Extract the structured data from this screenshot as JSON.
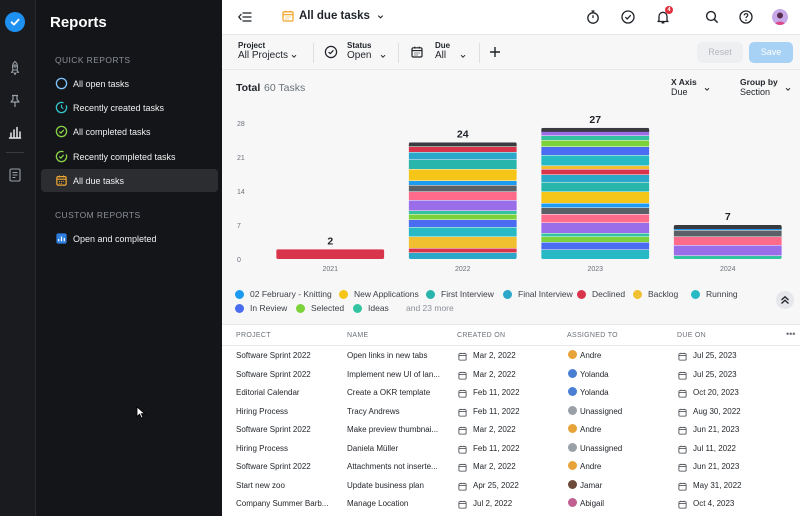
{
  "sidebar": {
    "title": "Reports",
    "quick_reports_label": "QUICK REPORTS",
    "custom_reports_label": "CUSTOM REPORTS",
    "quick_items": [
      {
        "label": "All open tasks",
        "icon": "circle-open-icon",
        "color": "#7fc4ff"
      },
      {
        "label": "Recently created tasks",
        "icon": "circle-clock-icon",
        "color": "#34c3c9"
      },
      {
        "label": "All completed tasks",
        "icon": "check-circle-icon",
        "color": "#8bd24a"
      },
      {
        "label": "Recently completed tasks",
        "icon": "check-circle-dashed-icon",
        "color": "#8bd24a"
      },
      {
        "label": "All due tasks",
        "icon": "calendar-icon",
        "color": "#f0a830",
        "active": true
      }
    ],
    "custom_items": [
      {
        "label": "Open and completed",
        "icon": "custom-report-icon",
        "color": "#2f7fe0"
      }
    ]
  },
  "topbar": {
    "title": "All due tasks",
    "notification_count": "4"
  },
  "filters": {
    "project": {
      "label": "Project",
      "value": "All Projects"
    },
    "status": {
      "label": "Status",
      "value": "Open"
    },
    "due": {
      "label": "Due",
      "value": "All"
    },
    "reset_label": "Reset",
    "save_label": "Save"
  },
  "chart_header": {
    "total_label": "Total",
    "total_count": "60 Tasks",
    "x_axis": {
      "label": "X Axis",
      "value": "Due"
    },
    "group_by": {
      "label": "Group by",
      "value": "Section"
    }
  },
  "chart_data": {
    "type": "bar",
    "stacked": true,
    "categories": [
      "2021",
      "2022",
      "2023",
      "2024"
    ],
    "values": [
      2,
      24,
      27,
      7
    ],
    "data_labels": [
      "2",
      "24",
      "27",
      "7"
    ],
    "y_ticks": [
      "0",
      "7",
      "14",
      "21",
      "28"
    ],
    "ylim": [
      0,
      28
    ],
    "colors": [
      "#1d9bf0",
      "#f5c518",
      "#28b5ab",
      "#2aa7c9",
      "#d8344b",
      "#f0c030",
      "#27b9c4",
      "#4a6cf0",
      "#7bd23a",
      "#34c3a0",
      "#9a6ee8",
      "#ff6b8a",
      "#5b5f66"
    ],
    "legend": [
      "02 February - Knitting",
      "New Applications",
      "First Interview",
      "Final Interview",
      "Declined",
      "Backlog",
      "Running",
      "In Review",
      "Selected",
      "Ideas"
    ],
    "legend_more": "and 23 more"
  },
  "table": {
    "headers": [
      "PROJECT",
      "NAME",
      "CREATED ON",
      "ASSIGNED TO",
      "DUE ON"
    ],
    "rows": [
      [
        "Software Sprint 2022",
        "Open links in new tabs",
        "Mar 2, 2022",
        "Andre",
        "Jul 25, 2023"
      ],
      [
        "Software Sprint 2022",
        "Implement new UI of lan...",
        "Mar 2, 2022",
        "Yolanda",
        "Jul 25, 2023"
      ],
      [
        "Editorial Calendar",
        "Create a OKR template",
        "Feb 11, 2022",
        "Yolanda",
        "Oct 20, 2023"
      ],
      [
        "Hiring Process",
        "Tracy Andrews",
        "Feb 11, 2022",
        "Unassigned",
        "Aug 30, 2022"
      ],
      [
        "Software Sprint 2022",
        "Make preview thumbnai...",
        "Mar 2, 2022",
        "Andre",
        "Jun 21, 2023"
      ],
      [
        "Hiring Process",
        "Daniela Müller",
        "Feb 11, 2022",
        "Unassigned",
        "Jul 11, 2022"
      ],
      [
        "Software Sprint 2022",
        "Attachments not inserte...",
        "Mar 2, 2022",
        "Andre",
        "Jun 21, 2023"
      ],
      [
        "Start new zoo",
        "Update business plan",
        "Apr 25, 2022",
        "Jamar",
        "May 31, 2022"
      ],
      [
        "Company Summer Barb...",
        "Manage Location",
        "Jul 2, 2022",
        "Abigail",
        "Oct 4, 2023"
      ]
    ]
  }
}
